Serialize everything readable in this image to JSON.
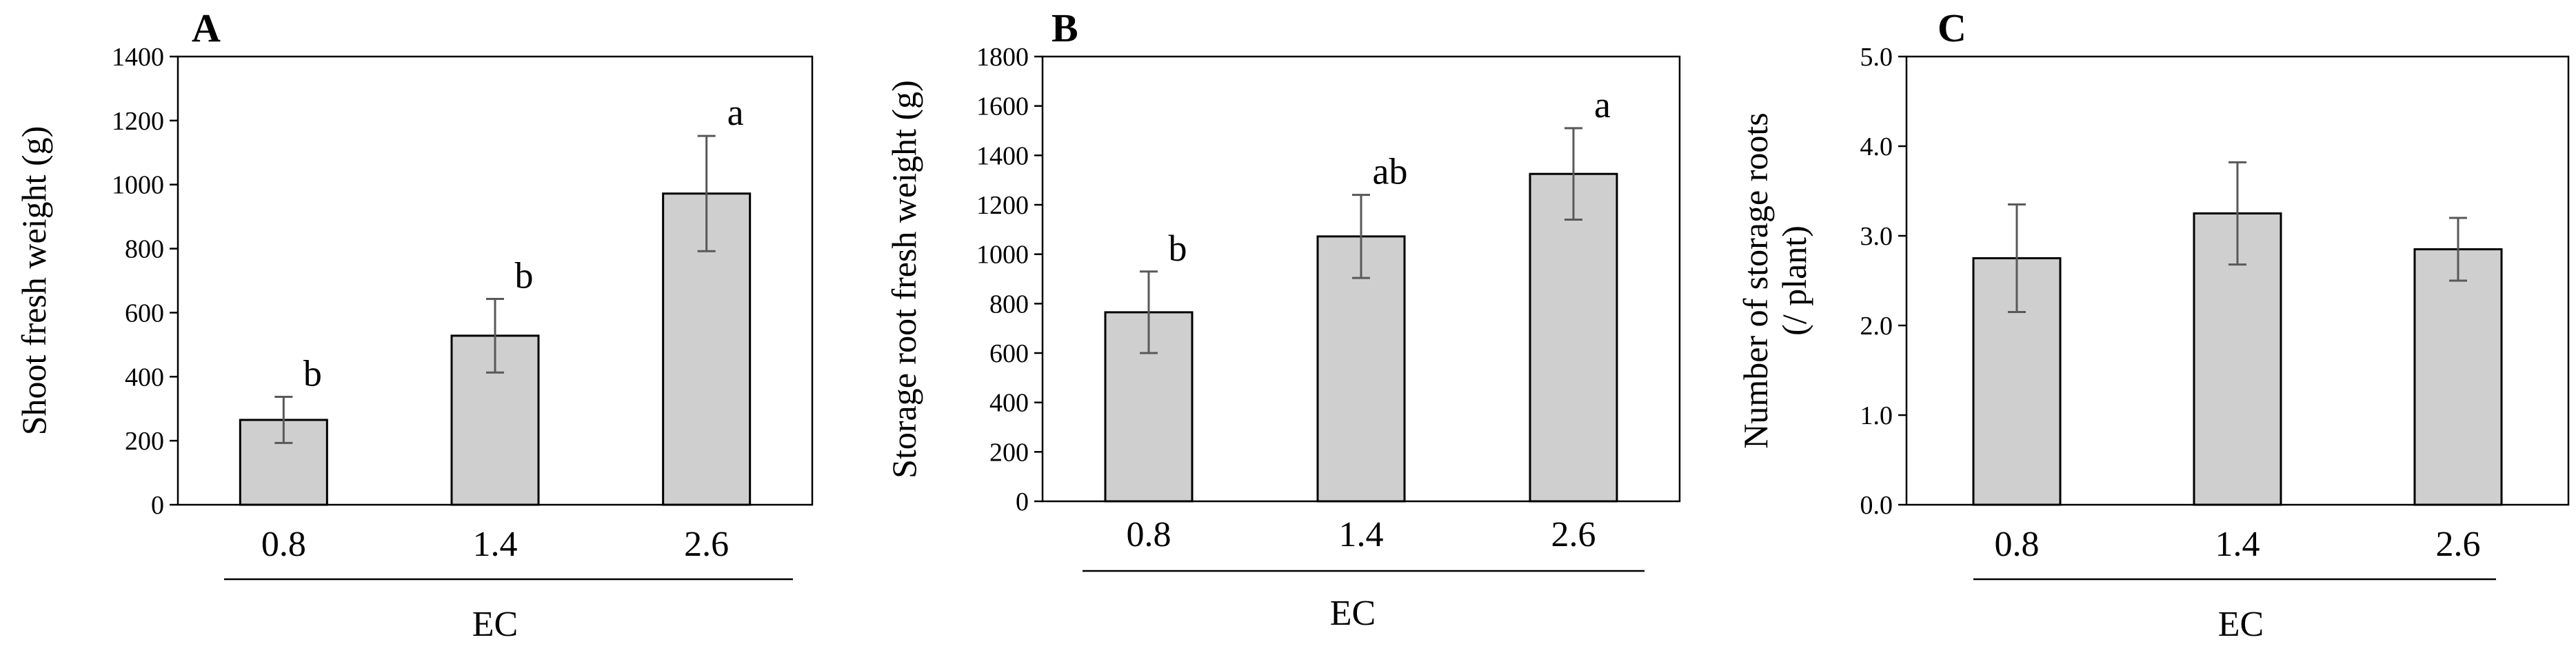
{
  "figure": {
    "colors": {
      "bar_fill": "#d0cfd0",
      "bar_stroke": "#000000",
      "error_bar": "#595959",
      "axis": "#000000"
    }
  },
  "chart_data": [
    {
      "type": "bar",
      "panel_label": "A",
      "categories": [
        "0.8",
        "1.4",
        "2.6"
      ],
      "values": [
        265,
        528,
        972
      ],
      "error": [
        72,
        115,
        180
      ],
      "significance": [
        "b",
        "b",
        "a"
      ],
      "xlabel": "EC",
      "ylabel": "Shoot fresh weight (g)",
      "ylabel_lines": [
        "Shoot fresh weight (g)"
      ],
      "ylim": [
        0,
        1400
      ],
      "yticks": [
        0,
        200,
        400,
        600,
        800,
        1000,
        1200,
        1400
      ],
      "ytick_labels": [
        "0",
        "200",
        "400",
        "600",
        "800",
        "1000",
        "1200",
        "1400"
      ],
      "grid": false
    },
    {
      "type": "bar",
      "panel_label": "B",
      "categories": [
        "0.8",
        "1.4",
        "2.6"
      ],
      "values": [
        765,
        1072,
        1325
      ],
      "error": [
        165,
        168,
        185
      ],
      "significance": [
        "b",
        "ab",
        "a"
      ],
      "xlabel": "EC",
      "ylabel": "Storage root fresh weight (g)",
      "ylabel_lines": [
        "Storage root fresh weight (g)"
      ],
      "ylim": [
        0,
        1800
      ],
      "yticks": [
        0,
        200,
        400,
        600,
        800,
        1000,
        1200,
        1400,
        1600,
        1800
      ],
      "ytick_labels": [
        "0",
        "200",
        "400",
        "600",
        "800",
        "1000",
        "1200",
        "1400",
        "1600",
        "1800"
      ],
      "grid": false
    },
    {
      "type": "bar",
      "panel_label": "C",
      "categories": [
        "0.8",
        "1.4",
        "2.6"
      ],
      "values": [
        2.75,
        3.25,
        2.85
      ],
      "error": [
        0.6,
        0.57,
        0.35
      ],
      "significance": [],
      "xlabel": "EC",
      "ylabel": "Number of storage roots (/ plant)",
      "ylabel_lines": [
        "Number of storage roots",
        "(/ plant)"
      ],
      "ylim": [
        0,
        5
      ],
      "yticks": [
        0,
        1,
        2,
        3,
        4,
        5
      ],
      "ytick_labels": [
        "0.0",
        "1.0",
        "2.0",
        "3.0",
        "4.0",
        "5.0"
      ],
      "grid": false
    }
  ]
}
